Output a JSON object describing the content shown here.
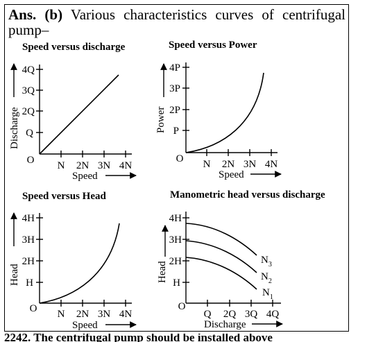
{
  "intro": {
    "answer_label": "Ans. (b)",
    "line1_text": "Various characteristics curves of centrifugal",
    "line2_text": "pump–"
  },
  "panels": [
    {
      "title": "Speed versus discharge",
      "y_label": "Discharge",
      "x_label": "Speed",
      "y_ticks": [
        "Q",
        "2Q",
        "3Q",
        "4Q"
      ],
      "x_ticks": [
        "N",
        "2N",
        "3N",
        "4N"
      ],
      "origin": "O"
    },
    {
      "title": "Speed versus Power",
      "y_label": "Power",
      "x_label": "Speed",
      "y_ticks": [
        "P",
        "2P",
        "3P",
        "4P"
      ],
      "x_ticks": [
        "N",
        "2N",
        "3N",
        "4N"
      ],
      "origin": "O"
    },
    {
      "title": "Speed versus Head",
      "y_label": "Head",
      "x_label": "Speed",
      "y_ticks": [
        "H",
        "2H",
        "3H",
        "4H"
      ],
      "x_ticks": [
        "N",
        "2N",
        "3N",
        "4N"
      ],
      "origin": "O"
    },
    {
      "title": "Manometric head versus discharge",
      "y_label": "Head",
      "x_label": "Discharge",
      "y_ticks": [
        "H",
        "2H",
        "3H",
        "4H"
      ],
      "x_ticks": [
        "Q",
        "2Q",
        "3Q",
        "4Q"
      ],
      "origin": "O",
      "curve_labels": [
        {
          "base": "N",
          "sub": "3"
        },
        {
          "base": "N",
          "sub": "2"
        },
        {
          "base": "N",
          "sub": "1"
        }
      ]
    }
  ],
  "footer_partial": "2242. The centrifugal pump should be installed above"
}
